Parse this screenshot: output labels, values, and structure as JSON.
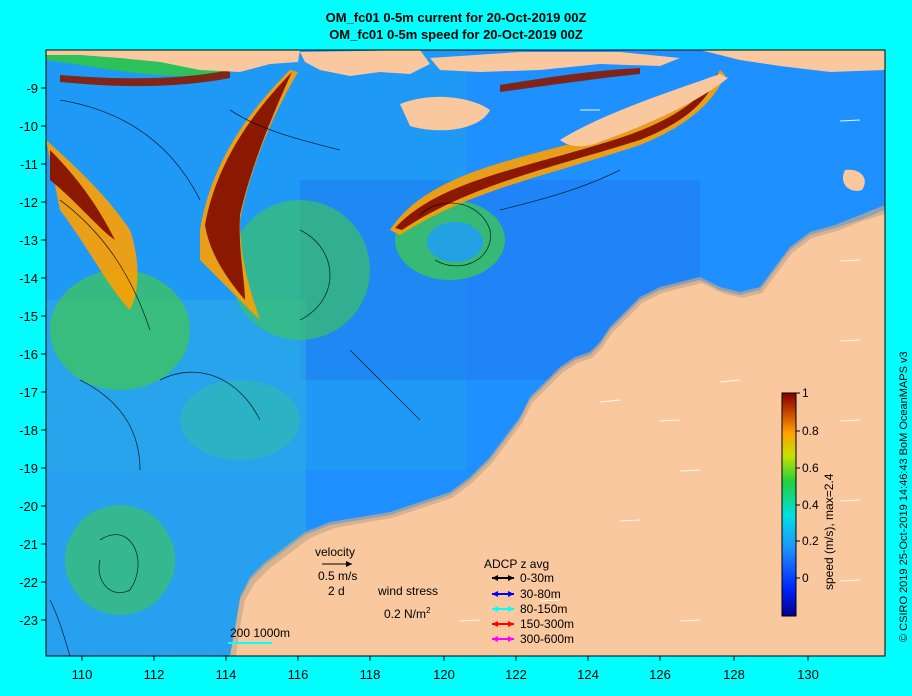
{
  "title": {
    "line1": "OM_fc01 0-5m current for 20-Oct-2019 00Z",
    "line2": "OM_fc01 0-5m speed for 20-Oct-2019 00Z"
  },
  "axes": {
    "y_ticks": [
      "-9",
      "-10",
      "-11",
      "-12",
      "-13",
      "-14",
      "-15",
      "-16",
      "-17",
      "-18",
      "-19",
      "-20",
      "-21",
      "-22",
      "-23"
    ],
    "x_ticks": [
      "110",
      "112",
      "114",
      "116",
      "118",
      "120",
      "122",
      "124",
      "126",
      "128",
      "130"
    ]
  },
  "colorbar": {
    "label": "speed (m/s), max=2.4",
    "ticks": [
      "1",
      "0.8",
      "0.6",
      "0.4",
      "0.2",
      "0"
    ]
  },
  "legend": {
    "velocity_title": "velocity",
    "velocity_scale": "0.5 m/s",
    "velocity_time": "2 d",
    "wind_title": "wind stress",
    "wind_scale": "0.2 N/m",
    "wind_exp": "2",
    "scale_bar": "200  1000m"
  },
  "adcp": {
    "title": "ADCP z avg",
    "items": [
      {
        "label": "0-30m",
        "color": "#000000"
      },
      {
        "label": "30-80m",
        "color": "#0000FF"
      },
      {
        "label": "80-150m",
        "color": "#00FFFF"
      },
      {
        "label": "150-300m",
        "color": "#FF0000"
      },
      {
        "label": "300-600m",
        "color": "#FF00FF"
      }
    ]
  },
  "credit": "© CSIRO 2019   25-Oct-2019 14:46:43 BoM OceanMAPS v3",
  "colors": {
    "background": "#00FFFF",
    "land": "#F9C89E",
    "shelf": "#C8A88A"
  }
}
